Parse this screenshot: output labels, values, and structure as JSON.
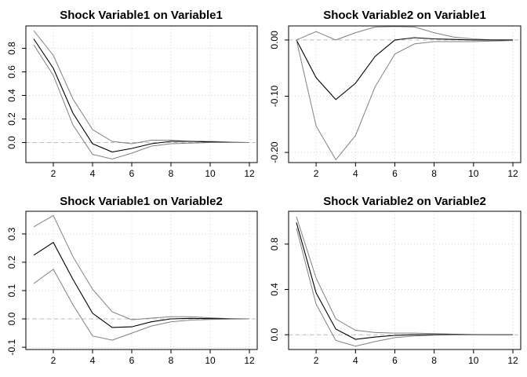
{
  "chart_data": [
    {
      "type": "line",
      "title": "Shock Variable1 on Variable1",
      "x": [
        1,
        2,
        3,
        4,
        5,
        6,
        7,
        8,
        9,
        10,
        11,
        12
      ],
      "xticks": [
        2,
        4,
        6,
        8,
        10,
        12
      ],
      "xlim": [
        0.6,
        12.4
      ],
      "ylim": [
        -0.17,
        0.99
      ],
      "yticks": [
        0.0,
        0.2,
        0.4,
        0.6,
        0.8
      ],
      "ytick_labels": [
        "0.0",
        "0.2",
        "0.4",
        "0.6",
        "0.8"
      ],
      "grid": true,
      "zero_line": true,
      "series": [
        {
          "role": "upper",
          "values": [
            0.95,
            0.74,
            0.37,
            0.11,
            0.01,
            -0.01,
            0.02,
            0.02,
            0.01,
            0.01,
            0.005,
            0.0
          ]
        },
        {
          "role": "irf",
          "values": [
            0.88,
            0.63,
            0.25,
            -0.01,
            -0.08,
            -0.05,
            -0.01,
            0.01,
            0.01,
            0.005,
            0.0,
            0.0
          ]
        },
        {
          "role": "lower",
          "values": [
            0.83,
            0.57,
            0.15,
            -0.1,
            -0.14,
            -0.09,
            -0.03,
            -0.01,
            -0.005,
            0.0,
            0.0,
            0.0
          ]
        }
      ]
    },
    {
      "type": "line",
      "title": "Shock Variable2 on Variable1",
      "x": [
        1,
        2,
        3,
        4,
        5,
        6,
        7,
        8,
        9,
        10,
        11,
        12
      ],
      "xticks": [
        2,
        4,
        6,
        8,
        10,
        12
      ],
      "xlim": [
        0.6,
        12.4
      ],
      "ylim": [
        -0.218,
        0.025
      ],
      "yticks": [
        -0.2,
        -0.1,
        0.0
      ],
      "ytick_labels": [
        "-0.20",
        "-0.10",
        "0.00"
      ],
      "grid": true,
      "zero_line": true,
      "series": [
        {
          "role": "upper",
          "values": [
            0.0,
            0.015,
            0.0,
            0.013,
            0.023,
            0.024,
            0.023,
            0.013,
            0.005,
            0.002,
            0.0,
            0.0
          ]
        },
        {
          "role": "irf",
          "values": [
            0.0,
            -0.067,
            -0.106,
            -0.077,
            -0.029,
            0.0,
            0.004,
            0.002,
            0.001,
            0.0,
            0.0,
            0.0
          ]
        },
        {
          "role": "lower",
          "values": [
            0.0,
            -0.153,
            -0.213,
            -0.17,
            -0.083,
            -0.025,
            -0.007,
            -0.003,
            -0.003,
            -0.003,
            -0.002,
            -0.001
          ]
        }
      ]
    },
    {
      "type": "line",
      "title": "Shock Variable1 on Variable2",
      "x": [
        1,
        2,
        3,
        4,
        5,
        6,
        7,
        8,
        9,
        10,
        11,
        12
      ],
      "xticks": [
        2,
        4,
        6,
        8,
        10,
        12
      ],
      "xlim": [
        0.6,
        12.4
      ],
      "ylim": [
        -0.108,
        0.38
      ],
      "yticks": [
        -0.1,
        0.0,
        0.1,
        0.2,
        0.3
      ],
      "ytick_labels": [
        "-0.1",
        "0.0",
        "0.1",
        "0.2",
        "0.3"
      ],
      "grid": true,
      "zero_line": true,
      "series": [
        {
          "role": "upper",
          "values": [
            0.325,
            0.365,
            0.22,
            0.105,
            0.025,
            -0.003,
            0.003,
            0.008,
            0.008,
            0.004,
            0.001,
            0.0
          ]
        },
        {
          "role": "irf",
          "values": [
            0.225,
            0.27,
            0.14,
            0.02,
            -0.03,
            -0.028,
            -0.01,
            0.0,
            0.002,
            0.001,
            0.0,
            0.0
          ]
        },
        {
          "role": "lower",
          "values": [
            0.125,
            0.175,
            0.05,
            -0.06,
            -0.075,
            -0.05,
            -0.025,
            -0.01,
            -0.004,
            -0.002,
            -0.001,
            0.0
          ]
        }
      ]
    },
    {
      "type": "line",
      "title": "Shock Variable2 on Variable2",
      "x": [
        1,
        2,
        3,
        4,
        5,
        6,
        7,
        8,
        9,
        10,
        11,
        12
      ],
      "xticks": [
        2,
        4,
        6,
        8,
        10,
        12
      ],
      "xlim": [
        0.6,
        12.4
      ],
      "ylim": [
        -0.13,
        1.09
      ],
      "yticks": [
        0.0,
        0.4,
        0.8
      ],
      "ytick_labels": [
        "0.0",
        "0.4",
        "0.8"
      ],
      "grid": true,
      "zero_line": true,
      "series": [
        {
          "role": "upper",
          "values": [
            1.04,
            0.5,
            0.14,
            0.04,
            0.02,
            0.015,
            0.015,
            0.01,
            0.005,
            0.002,
            0.0,
            0.0
          ]
        },
        {
          "role": "irf",
          "values": [
            0.99,
            0.37,
            0.05,
            -0.04,
            -0.02,
            -0.005,
            0.0,
            0.002,
            0.001,
            0.0,
            0.0,
            0.0
          ]
        },
        {
          "role": "lower",
          "values": [
            0.94,
            0.27,
            -0.05,
            -0.1,
            -0.06,
            -0.025,
            -0.01,
            -0.004,
            -0.002,
            -0.001,
            0.0,
            0.0
          ]
        }
      ]
    }
  ]
}
